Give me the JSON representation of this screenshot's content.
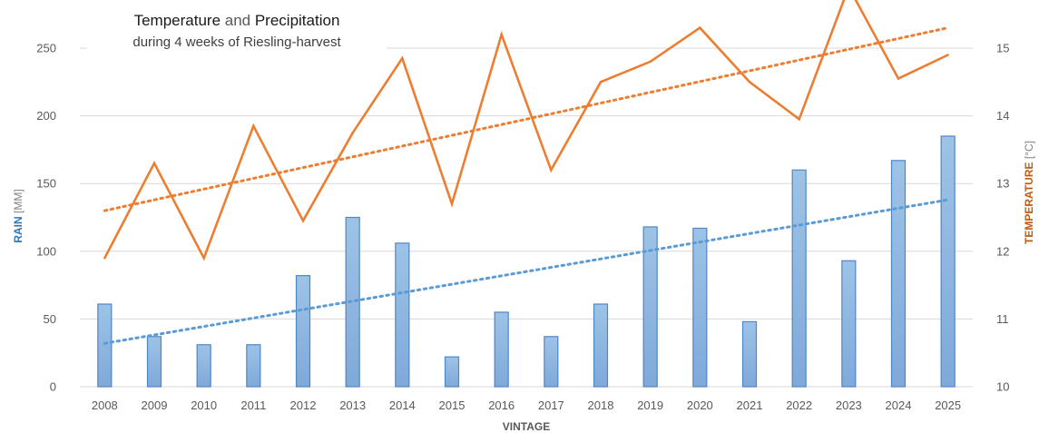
{
  "title": {
    "part1": "Temperature",
    "connector": " and ",
    "part2": "Precipitation",
    "subtitle": "during 4 weeks of Riesling-harvest"
  },
  "chart_data": {
    "type": "bar+line",
    "categories": [
      "2008",
      "2009",
      "2010",
      "2011",
      "2012",
      "2013",
      "2014",
      "2015",
      "2016",
      "2017",
      "2018",
      "2019",
      "2020",
      "2021",
      "2022",
      "2023",
      "2024",
      "2025"
    ],
    "series": [
      {
        "name": "Rain",
        "type": "bar",
        "axis": "left",
        "values": [
          61,
          37,
          31,
          31,
          82,
          125,
          106,
          22,
          55,
          37,
          61,
          118,
          117,
          48,
          160,
          93,
          167,
          185
        ],
        "trendline": {
          "style": "dotted",
          "start": 32,
          "end": 138
        }
      },
      {
        "name": "Temperature",
        "type": "line",
        "axis": "right",
        "values": [
          11.9,
          13.3,
          11.9,
          13.85,
          12.45,
          13.75,
          14.85,
          12.7,
          15.2,
          13.2,
          14.5,
          14.8,
          15.3,
          14.5,
          13.95,
          15.9,
          14.55,
          14.9
        ],
        "trendline": {
          "style": "dotted",
          "start": 12.6,
          "end": 15.3
        }
      }
    ],
    "xlabel": "VINTAGE",
    "ylabel_left_bold": "RAIN",
    "ylabel_left_unit": " [MM]",
    "ylabel_right_bold": "TEMPERATURE",
    "ylabel_right_unit": " [°C]",
    "ylim_left": [
      0,
      250
    ],
    "ylim_right": [
      10,
      15
    ],
    "yticks_left": [
      0,
      50,
      100,
      150,
      200,
      250
    ],
    "yticks_right": [
      10,
      11,
      12,
      13,
      14,
      15
    ],
    "grid": true,
    "colors": {
      "bar_fill": "#9dc3e6",
      "bar_stroke": "#4f86c6",
      "rain_trend": "#5b9bd5",
      "temperature": "#ed7d31",
      "rain_axis_title": "#2e75b6",
      "temp_axis_title": "#c55a11",
      "grid": "#d9d9d9"
    }
  }
}
